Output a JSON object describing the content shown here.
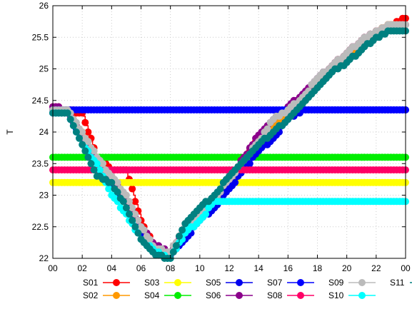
{
  "chart_data": {
    "type": "line",
    "title": "",
    "xlabel": "",
    "ylabel": "T",
    "xlim": [
      0,
      24
    ],
    "ylim": [
      22,
      26
    ],
    "xticks": [
      "00",
      "02",
      "04",
      "06",
      "08",
      "10",
      "12",
      "14",
      "16",
      "18",
      "20",
      "22",
      "00"
    ],
    "yticks": [
      "22",
      "22.5",
      "23",
      "23.5",
      "24",
      "24.5",
      "25",
      "25.5",
      "26"
    ],
    "grid": true,
    "legend_position": "bottom",
    "series": [
      {
        "name": "S01",
        "color": "#ff0000",
        "x": [
          0,
          1,
          2,
          3,
          4,
          5,
          6,
          7,
          8,
          9,
          10,
          11,
          12,
          13,
          14,
          15,
          16,
          17,
          18,
          19,
          20,
          21,
          22,
          23,
          24
        ],
        "y": [
          24.4,
          24.35,
          24.3,
          23.6,
          23.4,
          23.4,
          22.6,
          22.15,
          22.1,
          22.5,
          22.65,
          22.9,
          23.2,
          23.6,
          23.9,
          24.1,
          24.3,
          24.5,
          24.8,
          25.05,
          25.25,
          25.45,
          25.6,
          25.7,
          25.8
        ]
      },
      {
        "name": "S02",
        "color": "#ff9900",
        "x": [
          0,
          1,
          2,
          3,
          4,
          5,
          6,
          7,
          8,
          9,
          10,
          11,
          12,
          13,
          14,
          15,
          16,
          17,
          18,
          19,
          20,
          21,
          22,
          23,
          24
        ],
        "y": [
          24.35,
          24.3,
          24.0,
          23.6,
          23.3,
          22.8,
          22.4,
          22.1,
          22.05,
          22.4,
          22.65,
          22.9,
          23.2,
          23.5,
          23.8,
          24.1,
          24.3,
          24.5,
          24.8,
          25.0,
          25.2,
          25.4,
          25.6,
          25.7,
          25.7
        ]
      },
      {
        "name": "S03",
        "color": "#ffff00",
        "x": [
          0,
          24
        ],
        "y": [
          23.2,
          23.2
        ]
      },
      {
        "name": "S04",
        "color": "#00ee00",
        "x": [
          0,
          24
        ],
        "y": [
          23.6,
          23.6
        ]
      },
      {
        "name": "S05",
        "color": "#0000ee",
        "x": [
          0,
          1,
          2,
          3,
          4,
          5,
          6,
          7,
          8,
          9,
          10,
          11,
          12,
          13,
          14,
          15,
          16,
          17,
          18,
          19,
          20,
          21,
          22,
          23,
          24
        ],
        "y": [
          24.3,
          24.3,
          23.9,
          23.5,
          23.2,
          22.9,
          22.4,
          22.1,
          22.05,
          22.3,
          22.6,
          22.8,
          23.1,
          23.4,
          23.7,
          23.9,
          24.2,
          24.35,
          24.35,
          24.35,
          24.35,
          24.35,
          24.35,
          24.35,
          24.35
        ]
      },
      {
        "name": "S06",
        "color": "#8b008b",
        "x": [
          0,
          1,
          2,
          3,
          4,
          5,
          6,
          7,
          8,
          9,
          10,
          11,
          12,
          13,
          14,
          15,
          16,
          17,
          18,
          19,
          20,
          21,
          22,
          23,
          24
        ],
        "y": [
          24.4,
          24.35,
          23.9,
          23.5,
          23.3,
          22.9,
          22.5,
          22.2,
          22.1,
          22.4,
          22.7,
          22.95,
          23.25,
          23.6,
          23.95,
          24.2,
          24.4,
          24.6,
          24.85,
          25.05,
          25.25,
          25.45,
          25.6,
          25.65,
          25.7
        ]
      },
      {
        "name": "S07",
        "color": "#0000ff",
        "x": [
          0,
          24
        ],
        "y": [
          24.35,
          24.35
        ]
      },
      {
        "name": "S08",
        "color": "#ff0066",
        "x": [
          0,
          24
        ],
        "y": [
          23.4,
          23.4
        ]
      },
      {
        "name": "S09",
        "color": "#bbbbbb",
        "x": [
          0,
          1,
          2,
          3,
          4,
          5,
          6,
          7,
          8,
          9,
          10,
          11,
          12,
          13,
          14,
          15,
          16,
          17,
          18,
          19,
          20,
          21,
          22,
          23,
          24
        ],
        "y": [
          24.35,
          24.35,
          24.0,
          23.6,
          23.3,
          23.0,
          22.5,
          22.15,
          22.1,
          22.5,
          22.7,
          22.95,
          23.25,
          23.55,
          23.85,
          24.2,
          24.35,
          24.55,
          24.85,
          25.05,
          25.25,
          25.45,
          25.6,
          25.7,
          25.7
        ]
      },
      {
        "name": "S10",
        "color": "#00ffff",
        "x": [
          0,
          1,
          2,
          3,
          4,
          5,
          6,
          7,
          8,
          9,
          10,
          11,
          12,
          13,
          14,
          15,
          16,
          17,
          18,
          19,
          20,
          21,
          22,
          23,
          24
        ],
        "y": [
          24.3,
          24.3,
          23.8,
          23.5,
          23.0,
          22.7,
          22.3,
          22.1,
          22.0,
          22.4,
          22.6,
          22.9,
          22.9,
          22.9,
          22.9,
          22.9,
          22.9,
          22.9,
          22.9,
          22.9,
          22.9,
          22.9,
          22.9,
          22.9,
          22.9
        ]
      },
      {
        "name": "S11",
        "color": "#008080",
        "x": [
          0,
          1,
          2,
          3,
          4,
          5,
          6,
          7,
          8,
          9,
          10,
          11,
          12,
          13,
          14,
          15,
          16,
          17,
          18,
          19,
          20,
          21,
          22,
          23,
          24
        ],
        "y": [
          24.3,
          24.3,
          23.8,
          23.3,
          23.2,
          22.8,
          22.3,
          22.05,
          22.0,
          22.55,
          22.8,
          23.0,
          23.3,
          23.55,
          23.8,
          24.0,
          24.2,
          24.45,
          24.7,
          24.95,
          25.1,
          25.3,
          25.5,
          25.6,
          25.6
        ]
      }
    ]
  }
}
